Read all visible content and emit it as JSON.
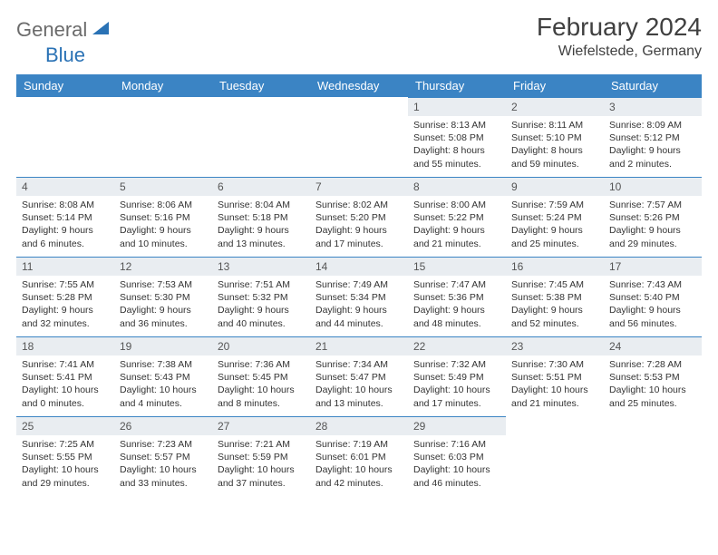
{
  "logo": {
    "part1": "General",
    "part2": "Blue"
  },
  "title": "February 2024",
  "location": "Wiefelstede, Germany",
  "colors": {
    "header_bg": "#3b84c4",
    "header_text": "#ffffff",
    "daynum_bg": "#e9edf1",
    "daynum_border": "#3b84c4",
    "body_text": "#333333",
    "logo_gray": "#6b6b6b",
    "logo_blue": "#2a72b5"
  },
  "fonts": {
    "title_size": 28,
    "location_size": 16,
    "header_size": 13,
    "daynum_size": 12,
    "body_size": 10.5
  },
  "weekdays": [
    "Sunday",
    "Monday",
    "Tuesday",
    "Wednesday",
    "Thursday",
    "Friday",
    "Saturday"
  ],
  "weeks": [
    [
      null,
      null,
      null,
      null,
      {
        "n": "1",
        "sr": "Sunrise: 8:13 AM",
        "ss": "Sunset: 5:08 PM",
        "d1": "Daylight: 8 hours",
        "d2": "and 55 minutes."
      },
      {
        "n": "2",
        "sr": "Sunrise: 8:11 AM",
        "ss": "Sunset: 5:10 PM",
        "d1": "Daylight: 8 hours",
        "d2": "and 59 minutes."
      },
      {
        "n": "3",
        "sr": "Sunrise: 8:09 AM",
        "ss": "Sunset: 5:12 PM",
        "d1": "Daylight: 9 hours",
        "d2": "and 2 minutes."
      }
    ],
    [
      {
        "n": "4",
        "sr": "Sunrise: 8:08 AM",
        "ss": "Sunset: 5:14 PM",
        "d1": "Daylight: 9 hours",
        "d2": "and 6 minutes."
      },
      {
        "n": "5",
        "sr": "Sunrise: 8:06 AM",
        "ss": "Sunset: 5:16 PM",
        "d1": "Daylight: 9 hours",
        "d2": "and 10 minutes."
      },
      {
        "n": "6",
        "sr": "Sunrise: 8:04 AM",
        "ss": "Sunset: 5:18 PM",
        "d1": "Daylight: 9 hours",
        "d2": "and 13 minutes."
      },
      {
        "n": "7",
        "sr": "Sunrise: 8:02 AM",
        "ss": "Sunset: 5:20 PM",
        "d1": "Daylight: 9 hours",
        "d2": "and 17 minutes."
      },
      {
        "n": "8",
        "sr": "Sunrise: 8:00 AM",
        "ss": "Sunset: 5:22 PM",
        "d1": "Daylight: 9 hours",
        "d2": "and 21 minutes."
      },
      {
        "n": "9",
        "sr": "Sunrise: 7:59 AM",
        "ss": "Sunset: 5:24 PM",
        "d1": "Daylight: 9 hours",
        "d2": "and 25 minutes."
      },
      {
        "n": "10",
        "sr": "Sunrise: 7:57 AM",
        "ss": "Sunset: 5:26 PM",
        "d1": "Daylight: 9 hours",
        "d2": "and 29 minutes."
      }
    ],
    [
      {
        "n": "11",
        "sr": "Sunrise: 7:55 AM",
        "ss": "Sunset: 5:28 PM",
        "d1": "Daylight: 9 hours",
        "d2": "and 32 minutes."
      },
      {
        "n": "12",
        "sr": "Sunrise: 7:53 AM",
        "ss": "Sunset: 5:30 PM",
        "d1": "Daylight: 9 hours",
        "d2": "and 36 minutes."
      },
      {
        "n": "13",
        "sr": "Sunrise: 7:51 AM",
        "ss": "Sunset: 5:32 PM",
        "d1": "Daylight: 9 hours",
        "d2": "and 40 minutes."
      },
      {
        "n": "14",
        "sr": "Sunrise: 7:49 AM",
        "ss": "Sunset: 5:34 PM",
        "d1": "Daylight: 9 hours",
        "d2": "and 44 minutes."
      },
      {
        "n": "15",
        "sr": "Sunrise: 7:47 AM",
        "ss": "Sunset: 5:36 PM",
        "d1": "Daylight: 9 hours",
        "d2": "and 48 minutes."
      },
      {
        "n": "16",
        "sr": "Sunrise: 7:45 AM",
        "ss": "Sunset: 5:38 PM",
        "d1": "Daylight: 9 hours",
        "d2": "and 52 minutes."
      },
      {
        "n": "17",
        "sr": "Sunrise: 7:43 AM",
        "ss": "Sunset: 5:40 PM",
        "d1": "Daylight: 9 hours",
        "d2": "and 56 minutes."
      }
    ],
    [
      {
        "n": "18",
        "sr": "Sunrise: 7:41 AM",
        "ss": "Sunset: 5:41 PM",
        "d1": "Daylight: 10 hours",
        "d2": "and 0 minutes."
      },
      {
        "n": "19",
        "sr": "Sunrise: 7:38 AM",
        "ss": "Sunset: 5:43 PM",
        "d1": "Daylight: 10 hours",
        "d2": "and 4 minutes."
      },
      {
        "n": "20",
        "sr": "Sunrise: 7:36 AM",
        "ss": "Sunset: 5:45 PM",
        "d1": "Daylight: 10 hours",
        "d2": "and 8 minutes."
      },
      {
        "n": "21",
        "sr": "Sunrise: 7:34 AM",
        "ss": "Sunset: 5:47 PM",
        "d1": "Daylight: 10 hours",
        "d2": "and 13 minutes."
      },
      {
        "n": "22",
        "sr": "Sunrise: 7:32 AM",
        "ss": "Sunset: 5:49 PM",
        "d1": "Daylight: 10 hours",
        "d2": "and 17 minutes."
      },
      {
        "n": "23",
        "sr": "Sunrise: 7:30 AM",
        "ss": "Sunset: 5:51 PM",
        "d1": "Daylight: 10 hours",
        "d2": "and 21 minutes."
      },
      {
        "n": "24",
        "sr": "Sunrise: 7:28 AM",
        "ss": "Sunset: 5:53 PM",
        "d1": "Daylight: 10 hours",
        "d2": "and 25 minutes."
      }
    ],
    [
      {
        "n": "25",
        "sr": "Sunrise: 7:25 AM",
        "ss": "Sunset: 5:55 PM",
        "d1": "Daylight: 10 hours",
        "d2": "and 29 minutes."
      },
      {
        "n": "26",
        "sr": "Sunrise: 7:23 AM",
        "ss": "Sunset: 5:57 PM",
        "d1": "Daylight: 10 hours",
        "d2": "and 33 minutes."
      },
      {
        "n": "27",
        "sr": "Sunrise: 7:21 AM",
        "ss": "Sunset: 5:59 PM",
        "d1": "Daylight: 10 hours",
        "d2": "and 37 minutes."
      },
      {
        "n": "28",
        "sr": "Sunrise: 7:19 AM",
        "ss": "Sunset: 6:01 PM",
        "d1": "Daylight: 10 hours",
        "d2": "and 42 minutes."
      },
      {
        "n": "29",
        "sr": "Sunrise: 7:16 AM",
        "ss": "Sunset: 6:03 PM",
        "d1": "Daylight: 10 hours",
        "d2": "and 46 minutes."
      },
      null,
      null
    ]
  ]
}
